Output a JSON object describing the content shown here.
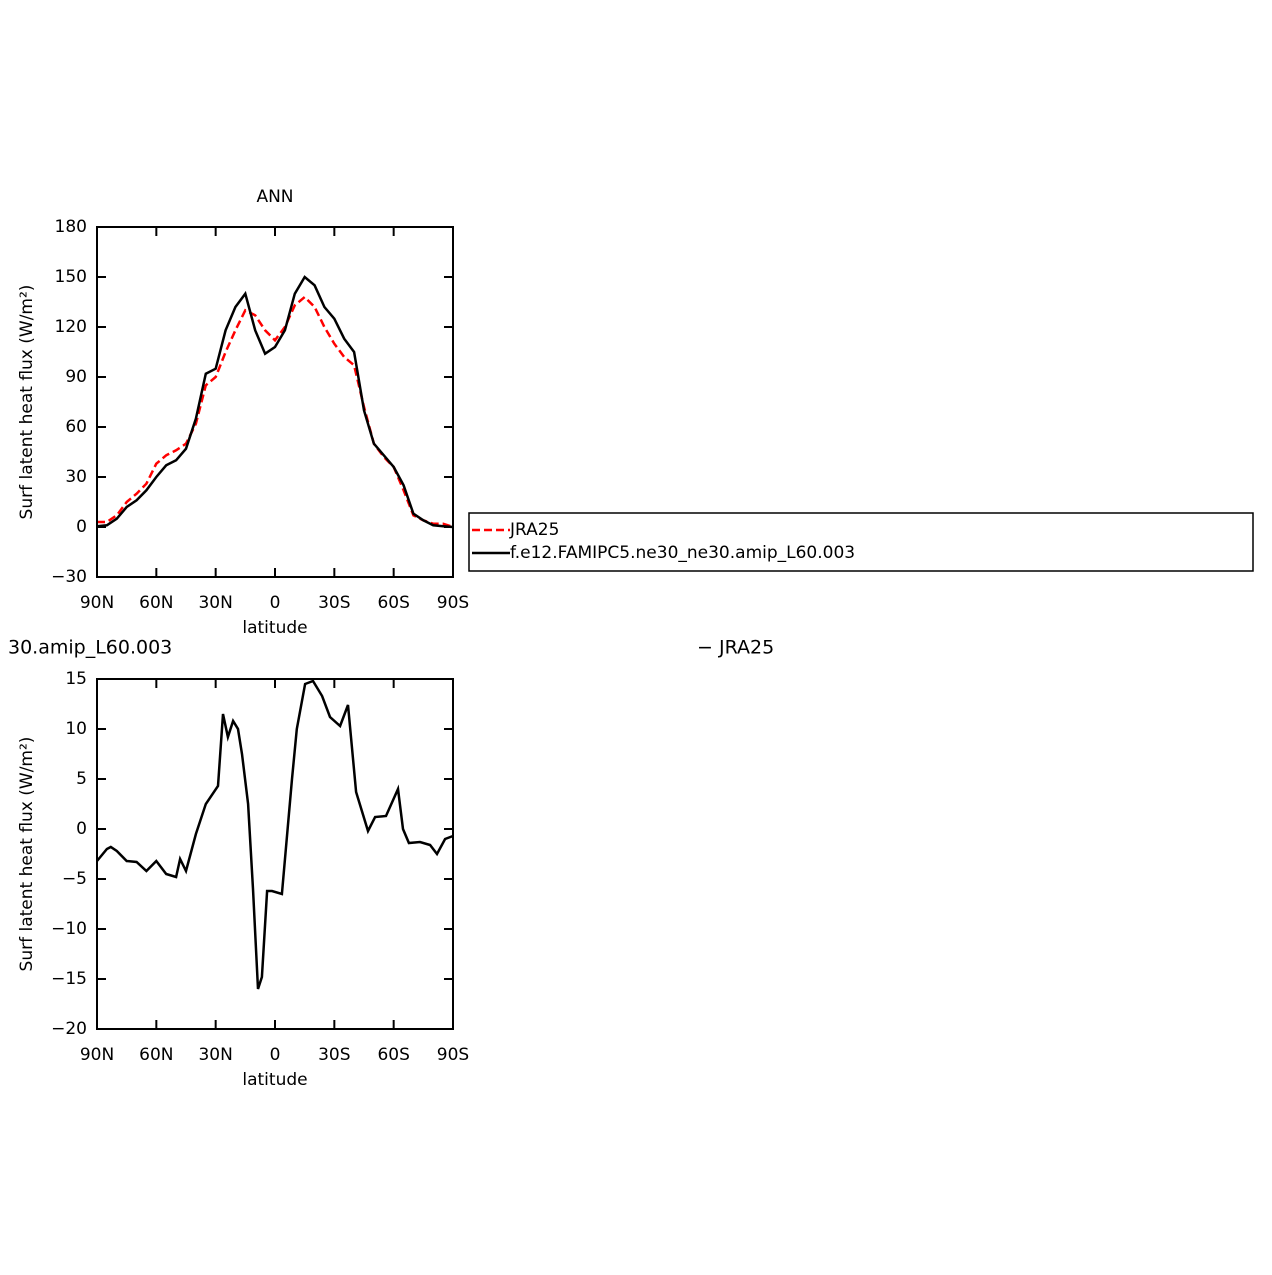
{
  "chart_data": [
    {
      "type": "line",
      "title": "ANN",
      "xlabel": "latitude",
      "ylabel": "Surf latent heat flux (W/m²)",
      "x": [
        90,
        85,
        80,
        75,
        70,
        65,
        60,
        55,
        50,
        45,
        40,
        35,
        30,
        25,
        20,
        15,
        10,
        5,
        0,
        -5,
        -10,
        -15,
        -20,
        -25,
        -30,
        -35,
        -40,
        -45,
        -50,
        -55,
        -60,
        -65,
        -70,
        -75,
        -80,
        -85,
        -90
      ],
      "series": [
        {
          "name": "JRA25",
          "color": "#ff0000",
          "style": "dashed",
          "values": [
            3,
            3,
            7,
            15,
            20,
            26,
            38,
            43,
            46,
            50,
            62,
            85,
            90,
            105,
            118,
            130,
            127,
            118,
            112,
            120,
            133,
            138,
            132,
            120,
            110,
            102,
            97,
            72,
            50,
            42,
            36,
            22,
            7,
            4,
            2,
            2,
            0
          ]
        },
        {
          "name": "f.e12.FAMIPC5.ne30_ne30.amip_L60.003",
          "color": "#000000",
          "style": "solid",
          "values": [
            0.5,
            1,
            5,
            12,
            16,
            22,
            30,
            37,
            40,
            47,
            65,
            92,
            95,
            118,
            132,
            140,
            118,
            104,
            108,
            118,
            140,
            150,
            145,
            132,
            125,
            113,
            105,
            70,
            50,
            43,
            36,
            25,
            8,
            4,
            1,
            0.5,
            0
          ]
        }
      ],
      "xlim": [
        90,
        -90
      ],
      "xticks": [
        {
          "value": 90,
          "label": "90N"
        },
        {
          "value": 60,
          "label": "60N"
        },
        {
          "value": 30,
          "label": "30N"
        },
        0,
        {
          "value": -30,
          "label": "30S"
        },
        {
          "value": -60,
          "label": "60S"
        },
        {
          "value": -90,
          "label": "90S"
        }
      ],
      "ylim": [
        -30,
        180
      ],
      "yticks": [
        {
          "value": -30,
          "label": "−30"
        },
        0,
        30,
        60,
        90,
        120,
        150,
        180
      ],
      "legend": "right"
    },
    {
      "type": "line",
      "left_title": "30.amip_L60.003",
      "right_title": "− JRA25",
      "xlabel": "latitude",
      "ylabel": "Surf latent heat flux (W/m²)",
      "x": [
        90,
        85,
        83,
        80,
        75,
        70,
        65,
        60,
        55,
        50,
        48,
        45,
        40,
        35,
        28.8,
        26.3,
        23.8,
        21.2,
        18.7,
        16.7,
        13.6,
        11.1,
        8.6,
        6.6,
        4,
        1.5,
        -3.5,
        -8.6,
        -11,
        -15.2,
        -19.2,
        -23.8,
        -27.8,
        -32.9,
        -36.9,
        -41,
        -47,
        -50.6,
        -56.1,
        -62.2,
        -64.7,
        -67.7,
        -73.3,
        -78.4,
        -81.9,
        -86,
        -90
      ],
      "series": [
        {
          "color": "#000000",
          "style": "solid",
          "values": [
            -3.2,
            -2,
            -1.8,
            -2.2,
            -3.2,
            -3.3,
            -4.2,
            -3.2,
            -4.5,
            -4.8,
            -3,
            -4.2,
            -0.5,
            2.5,
            4.3,
            11.5,
            9.2,
            10.8,
            10,
            7.5,
            2.5,
            -6,
            -16,
            -14.8,
            -6.2,
            -6.2,
            -6.5,
            5,
            10,
            14.5,
            14.8,
            13.3,
            11.2,
            10.3,
            12.4,
            3.7,
            -0.2,
            1.2,
            1.3,
            4,
            0,
            -1.4,
            -1.3,
            -1.6,
            -2.5,
            -1,
            -0.7
          ]
        }
      ],
      "xlim": [
        90,
        -90
      ],
      "xticks": [
        {
          "value": 90,
          "label": "90N"
        },
        {
          "value": 60,
          "label": "60N"
        },
        {
          "value": 30,
          "label": "30N"
        },
        0,
        {
          "value": -30,
          "label": "30S"
        },
        {
          "value": -60,
          "label": "60S"
        },
        {
          "value": -90,
          "label": "90S"
        }
      ],
      "ylim": [
        -20,
        15
      ],
      "yticks": [
        {
          "value": -20,
          "label": "−20"
        },
        {
          "value": -15,
          "label": "−15"
        },
        {
          "value": -10,
          "label": "−10"
        },
        {
          "value": -5,
          "label": "−5"
        },
        0,
        5,
        10,
        15
      ]
    }
  ]
}
